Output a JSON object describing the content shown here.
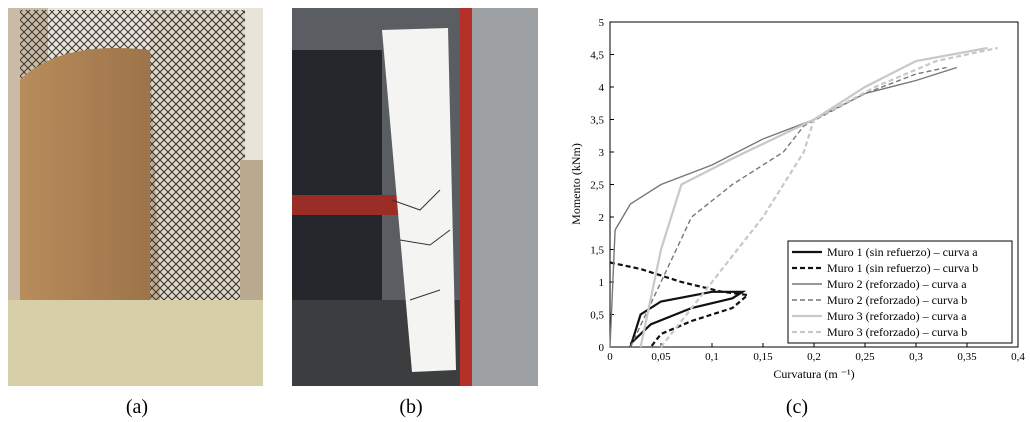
{
  "captions": [
    "(a)",
    "(b)",
    "(c)"
  ],
  "chart_data": {
    "type": "line",
    "xlabel": "Curvatura (m ⁻¹)",
    "ylabel": "Momento (kNm)",
    "xlim": [
      0,
      0.4
    ],
    "ylim": [
      0,
      5
    ],
    "xticks": [
      0,
      {
        "value": 0.05,
        "label": "0,05"
      },
      {
        "value": 0.1,
        "label": "0,1"
      },
      {
        "value": 0.15,
        "label": "0,15"
      },
      {
        "value": 0.2,
        "label": "0,2"
      },
      {
        "value": 0.25,
        "label": "0,25"
      },
      {
        "value": 0.3,
        "label": "0,3"
      },
      {
        "value": 0.35,
        "label": "0,35"
      },
      {
        "value": 0.4,
        "label": "0,4"
      }
    ],
    "yticks": [
      0,
      {
        "value": 0.5,
        "label": "0,5"
      },
      1,
      {
        "value": 1.5,
        "label": "1,5"
      },
      2,
      {
        "value": 2.5,
        "label": "2,5"
      },
      3,
      {
        "value": 3.5,
        "label": "3,5"
      },
      4,
      {
        "value": 4.5,
        "label": "4,5"
      },
      5
    ],
    "legend": "lower right",
    "series": [
      {
        "name": "Muro 1 (sin refuerzo) – curva a",
        "color": "#111111",
        "dashed": false,
        "line_width": 2.2,
        "x": [
          0.02,
          0.03,
          0.05,
          0.1,
          0.13,
          0.12,
          0.08,
          0.04,
          0.02
        ],
        "values": [
          0,
          0.5,
          0.7,
          0.85,
          0.85,
          0.75,
          0.6,
          0.35,
          0.05
        ]
      },
      {
        "name": "Muro 1 (sin refuerzo) – curva b",
        "color": "#111111",
        "dashed": true,
        "line_width": 2.2,
        "x": [
          0,
          0.03,
          0.07,
          0.11,
          0.135,
          0.12,
          0.08,
          0.05,
          0.04
        ],
        "values": [
          1.3,
          1.2,
          1.0,
          0.85,
          0.8,
          0.6,
          0.4,
          0.2,
          0
        ]
      },
      {
        "name": "Muro 2 (reforzado) – curva a",
        "color": "#777777",
        "dashed": false,
        "line_width": 1.4,
        "x": [
          0,
          0.005,
          0.02,
          0.05,
          0.1,
          0.15,
          0.2,
          0.25,
          0.3,
          0.34
        ],
        "values": [
          0,
          1.8,
          2.2,
          2.5,
          2.8,
          3.2,
          3.5,
          3.9,
          4.1,
          4.3
        ]
      },
      {
        "name": "Muro 2 (reforzado) – curva b",
        "color": "#777777",
        "dashed": true,
        "line_width": 1.4,
        "x": [
          0.02,
          0.05,
          0.08,
          0.12,
          0.17,
          0.19,
          0.25,
          0.3,
          0.33
        ],
        "values": [
          0,
          1.0,
          2.0,
          2.5,
          3.0,
          3.4,
          3.9,
          4.2,
          4.3
        ]
      },
      {
        "name": "Muro 3 (reforzado) – curva a",
        "color": "#c8c8c8",
        "dashed": false,
        "line_width": 2.2,
        "x": [
          0.03,
          0.05,
          0.07,
          0.12,
          0.2,
          0.25,
          0.3,
          0.37
        ],
        "values": [
          0,
          1.5,
          2.5,
          2.9,
          3.5,
          4.0,
          4.4,
          4.6
        ]
      },
      {
        "name": "Muro 3 (reforzado) – curva b",
        "color": "#c8c8c8",
        "dashed": true,
        "line_width": 2.2,
        "x": [
          0.05,
          0.1,
          0.15,
          0.19,
          0.2,
          0.26,
          0.32,
          0.38
        ],
        "values": [
          0,
          1.0,
          2.0,
          3.0,
          3.5,
          4.0,
          4.4,
          4.6
        ]
      }
    ]
  }
}
